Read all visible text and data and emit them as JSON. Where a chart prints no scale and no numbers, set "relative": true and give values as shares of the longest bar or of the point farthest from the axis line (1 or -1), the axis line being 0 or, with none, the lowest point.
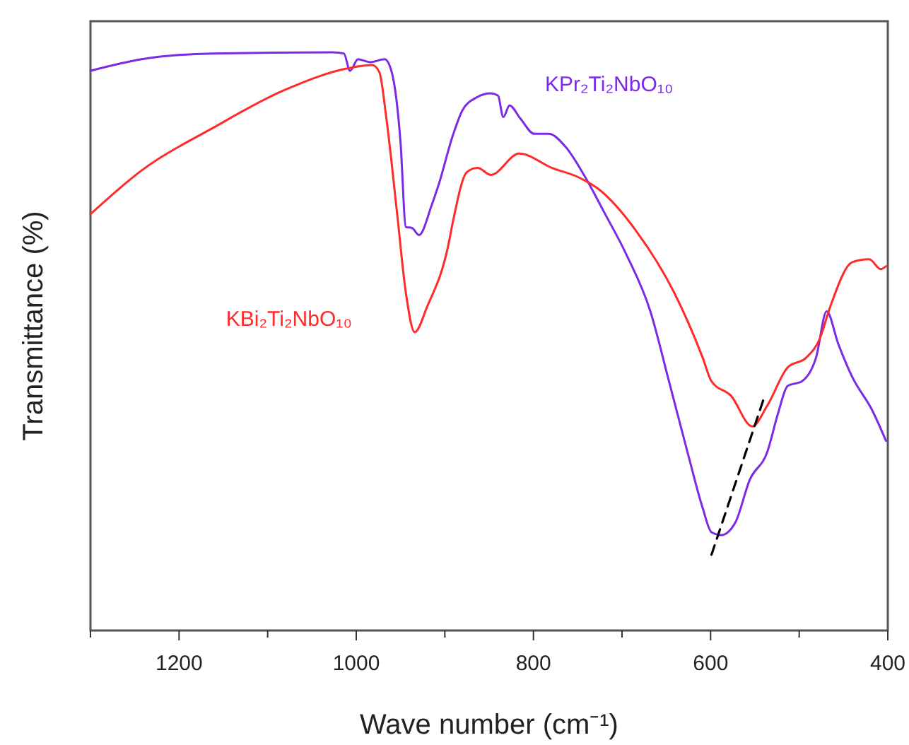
{
  "chart_data": {
    "type": "line",
    "relative": true,
    "xlabel": "Wave number (cm⁻¹)",
    "ylabel": "Transmittance (%)",
    "xlim": [
      1300,
      400
    ],
    "xticks": [
      {
        "value": 1300,
        "label": null
      },
      1200,
      {
        "value": 1100,
        "label": null
      },
      1000,
      {
        "value": 900,
        "label": null
      },
      800,
      {
        "value": 700,
        "label": null
      },
      600,
      {
        "value": 500,
        "label": null
      },
      400
    ],
    "series": [
      {
        "name": "KPr₂Ti₂NbO₁₀",
        "color": "#7b2be6",
        "x": [
          1300,
          1242,
          1162,
          1027,
          1014,
          1007,
          998,
          984,
          968,
          960,
          950,
          944,
          937,
          929,
          915,
          907,
          891,
          880,
          864,
          848,
          840,
          834,
          827,
          815,
          799,
          783,
          764,
          743,
          720,
          695,
          668,
          647,
          625,
          609,
          599,
          588,
          572,
          556,
          536,
          524,
          513,
          497,
          481,
          469,
          456,
          440,
          418,
          402
        ],
        "values": [
          0.968,
          0.988,
          0.998,
          1.0,
          0.998,
          0.968,
          0.988,
          0.983,
          0.988,
          0.966,
          0.844,
          0.698,
          0.696,
          0.684,
          0.735,
          0.771,
          0.856,
          0.9,
          0.922,
          0.929,
          0.925,
          0.888,
          0.908,
          0.886,
          0.859,
          0.859,
          0.837,
          0.788,
          0.723,
          0.65,
          0.552,
          0.431,
          0.302,
          0.212,
          0.17,
          0.165,
          0.187,
          0.26,
          0.309,
          0.375,
          0.423,
          0.431,
          0.472,
          0.552,
          0.496,
          0.438,
          0.382,
          0.328
        ]
      },
      {
        "name": "KBi₂Ti₂NbO₁₀",
        "color": "#ff2a2a",
        "x": [
          1300,
          1242,
          1162,
          1082,
          1007,
          982,
          974,
          966,
          954,
          944,
          934,
          920,
          896,
          891,
          875,
          863,
          848,
          816,
          779,
          748,
          727,
          684,
          641,
          609,
          599,
          577,
          553,
          536,
          513,
          492,
          477,
          465,
          440,
          421,
          408,
          402
        ],
        "values": [
          0.72,
          0.796,
          0.869,
          0.934,
          0.973,
          0.978,
          0.966,
          0.886,
          0.723,
          0.584,
          0.516,
          0.56,
          0.667,
          0.706,
          0.793,
          0.8,
          0.788,
          0.825,
          0.8,
          0.783,
          0.764,
          0.691,
          0.584,
          0.472,
          0.431,
          0.406,
          0.353,
          0.389,
          0.455,
          0.472,
          0.504,
          0.56,
          0.637,
          0.642,
          0.625,
          0.63
        ]
      },
      {
        "color": "#000000",
        "line_style": "dashed",
        "x": [
          599,
          540
        ],
        "values": [
          0.131,
          0.401
        ]
      }
    ]
  }
}
